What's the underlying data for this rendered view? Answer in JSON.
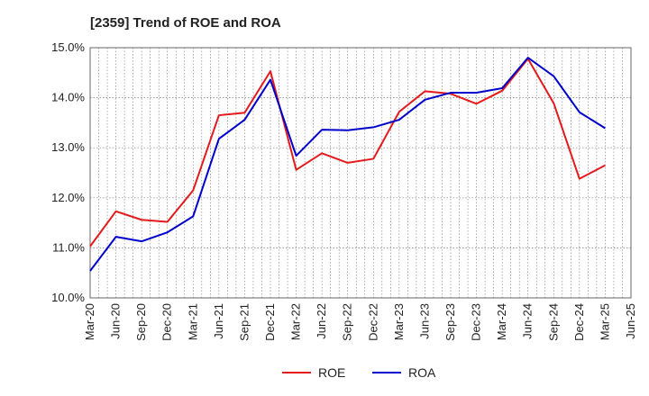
{
  "chart_data": {
    "type": "line",
    "title": "[2359]  Trend of ROE and ROA",
    "xlabel": "",
    "ylabel": "",
    "x": [
      "Mar-20",
      "Jun-20",
      "Sep-20",
      "Dec-20",
      "Mar-21",
      "Jun-21",
      "Sep-21",
      "Dec-21",
      "Mar-22",
      "Jun-22",
      "Sep-22",
      "Dec-22",
      "Mar-23",
      "Jun-23",
      "Sep-23",
      "Dec-23",
      "Mar-24",
      "Jun-24",
      "Sep-24",
      "Dec-24",
      "Mar-25",
      "Jun-25"
    ],
    "ylim": [
      10.0,
      15.0
    ],
    "yticks": [
      10.0,
      11.0,
      12.0,
      13.0,
      14.0,
      15.0
    ],
    "ytick_labels": [
      "10.0%",
      "11.0%",
      "12.0%",
      "13.0%",
      "14.0%",
      "15.0%"
    ],
    "grid": true,
    "legend_position": "bottom",
    "series": [
      {
        "name": "ROE",
        "color": "#e31a1c",
        "values": [
          11.03,
          11.73,
          11.56,
          11.52,
          12.15,
          13.65,
          13.7,
          14.53,
          12.56,
          12.89,
          12.7,
          12.78,
          13.72,
          14.13,
          14.08,
          13.88,
          14.14,
          14.78,
          13.89,
          12.38,
          12.65,
          null
        ]
      },
      {
        "name": "ROA",
        "color": "#0000cc",
        "values": [
          10.54,
          11.22,
          11.13,
          11.31,
          11.63,
          13.18,
          13.56,
          14.36,
          12.84,
          13.36,
          13.35,
          13.41,
          13.56,
          13.96,
          14.1,
          14.1,
          14.19,
          14.8,
          14.43,
          13.71,
          13.39,
          null
        ]
      }
    ]
  }
}
